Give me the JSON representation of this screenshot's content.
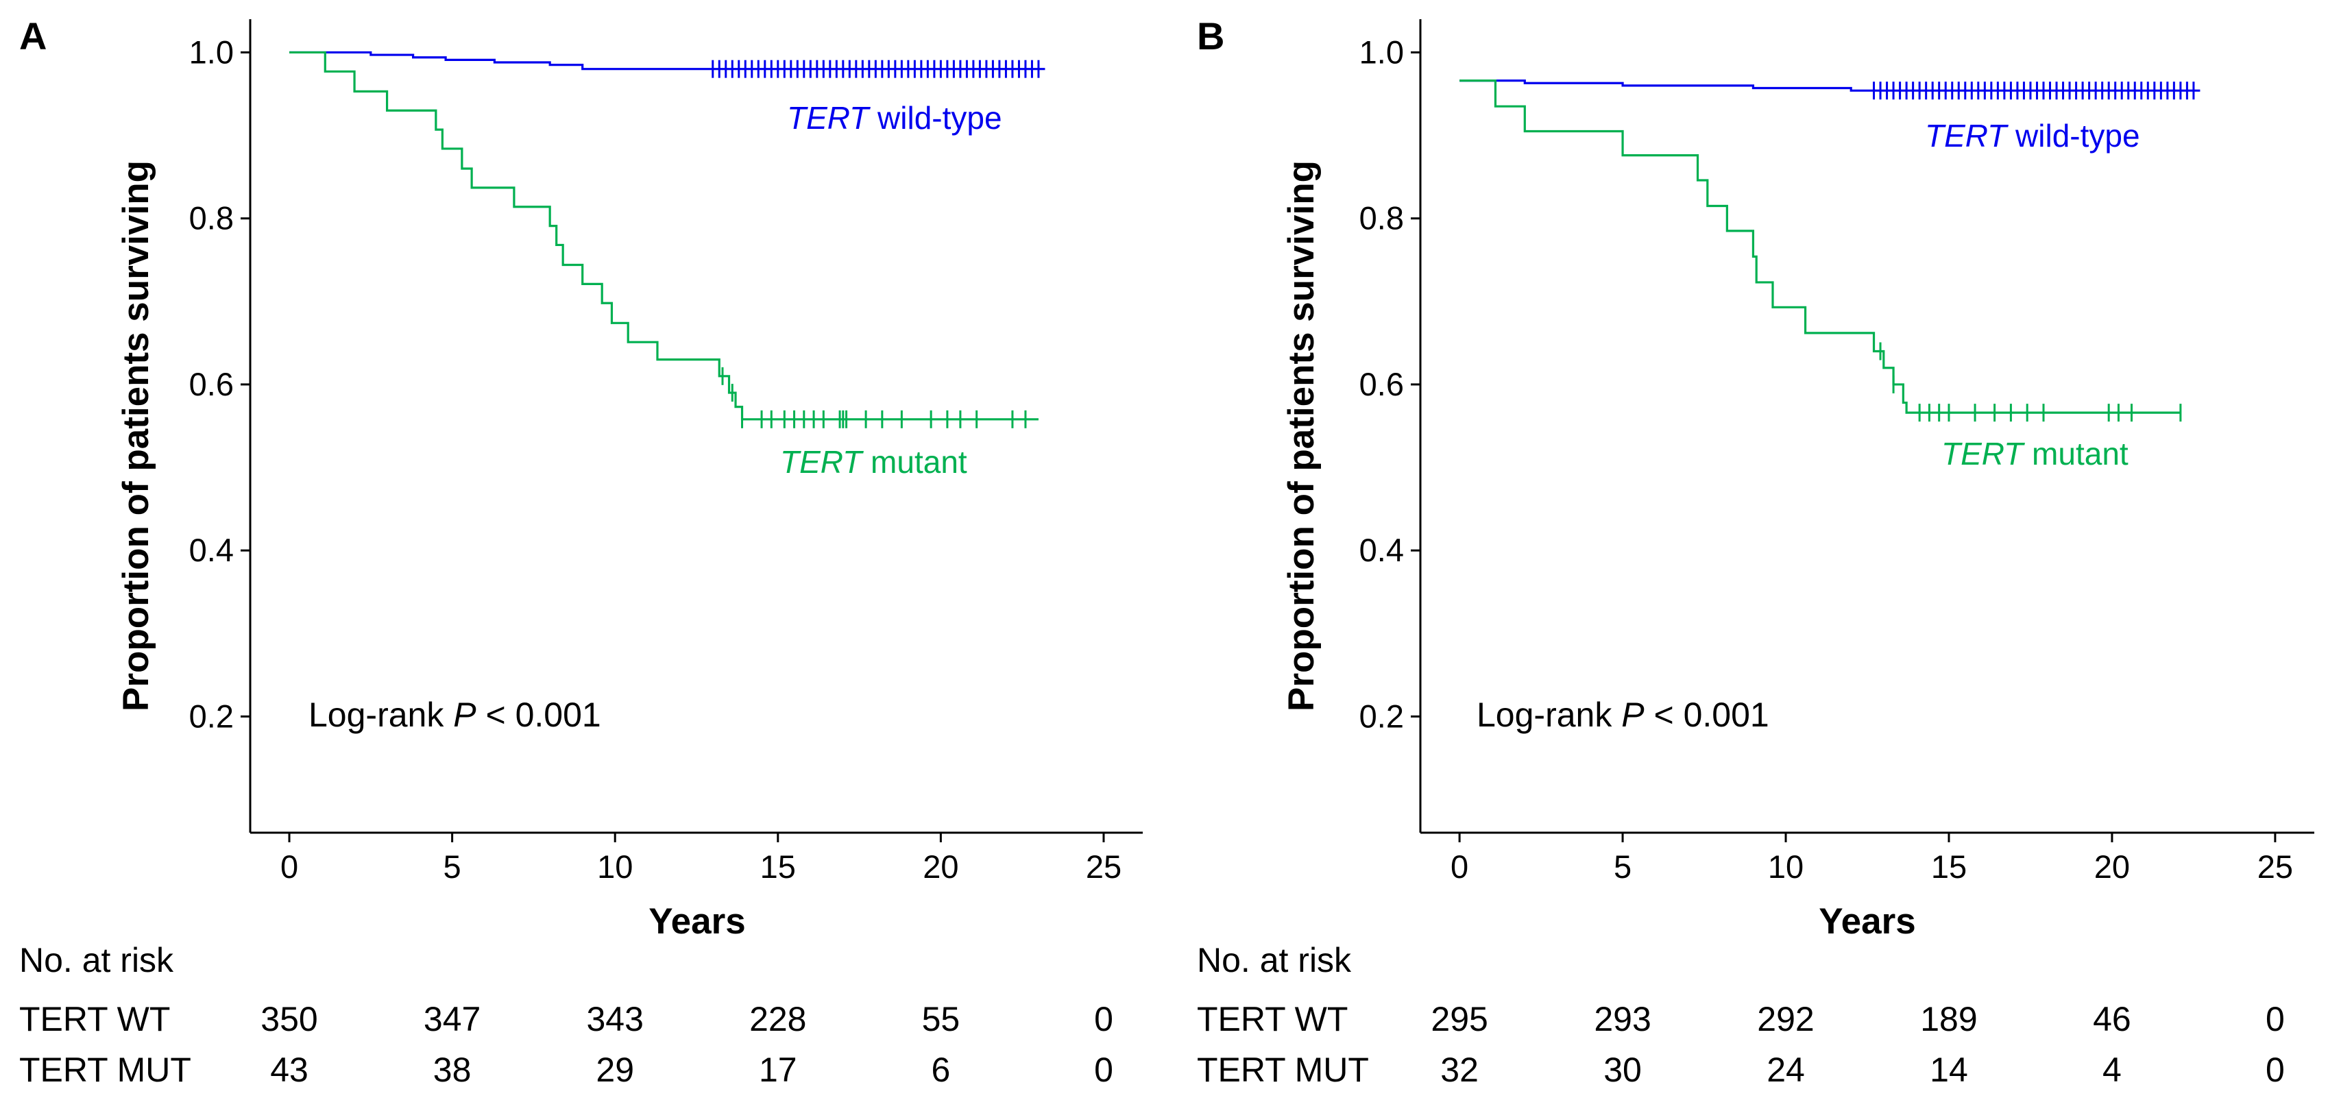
{
  "chart_data": [
    {
      "type": "line",
      "subtype": "kaplan-meier",
      "panel": "A",
      "xlabel": "Years",
      "ylabel": "Proportion of patients surviving",
      "xlim": [
        -1.2,
        26.2
      ],
      "ylim": [
        0.06,
        1.04
      ],
      "xticks": [
        0,
        5,
        10,
        15,
        20,
        25
      ],
      "yticks": [
        0.2,
        0.4,
        0.6,
        0.8,
        1.0
      ],
      "ytick_labels": [
        "0.2",
        "0.4",
        "0.6",
        "0.8",
        "1.0"
      ],
      "annotation": {
        "pre": "Log-rank ",
        "italic": "P",
        "post": " < 0.001"
      },
      "series": [
        {
          "name": "TERT wild-type",
          "label_italic": "TERT",
          "label_rest": " wild-type",
          "color": "#0000ee",
          "steps": [
            [
              0,
              1.0
            ],
            [
              2.5,
              0.997
            ],
            [
              3.8,
              0.994
            ],
            [
              4.8,
              0.991
            ],
            [
              6.3,
              0.988
            ],
            [
              8.0,
              0.985
            ],
            [
              9.0,
              0.98
            ],
            [
              22.8,
              0.98
            ]
          ],
          "end": 23.2,
          "censor_times": [
            13.0,
            13.2,
            13.4,
            13.6,
            13.8,
            14.0,
            14.2,
            14.4,
            14.6,
            14.8,
            15.0,
            15.2,
            15.4,
            15.6,
            15.8,
            16.0,
            16.2,
            16.4,
            16.6,
            16.8,
            17.0,
            17.2,
            17.4,
            17.6,
            17.8,
            18.0,
            18.2,
            18.4,
            18.6,
            18.8,
            19.0,
            19.2,
            19.4,
            19.6,
            19.8,
            20.0,
            20.2,
            20.4,
            20.6,
            20.8,
            21.0,
            21.2,
            21.4,
            21.6,
            21.8,
            22.0,
            22.2,
            22.4,
            22.6,
            22.8,
            23.0
          ]
        },
        {
          "name": "TERT mutant",
          "label_italic": "TERT",
          "label_rest": " mutant",
          "color": "#00b050",
          "steps": [
            [
              0,
              1.0
            ],
            [
              1.1,
              0.977
            ],
            [
              2.0,
              0.953
            ],
            [
              3.0,
              0.93
            ],
            [
              4.5,
              0.907
            ],
            [
              4.7,
              0.884
            ],
            [
              5.3,
              0.86
            ],
            [
              5.6,
              0.837
            ],
            [
              6.9,
              0.814
            ],
            [
              8.0,
              0.791
            ],
            [
              8.2,
              0.768
            ],
            [
              8.4,
              0.744
            ],
            [
              9.0,
              0.721
            ],
            [
              9.6,
              0.698
            ],
            [
              9.9,
              0.674
            ],
            [
              10.4,
              0.651
            ],
            [
              11.3,
              0.63
            ],
            [
              13.2,
              0.61
            ],
            [
              13.5,
              0.59
            ],
            [
              13.7,
              0.573
            ],
            [
              13.9,
              0.558
            ]
          ],
          "end": 23.0,
          "censor_times": [
            13.3,
            13.6,
            13.9,
            14.5,
            14.8,
            15.2,
            15.5,
            15.8,
            16.1,
            16.4,
            16.9,
            17.0,
            17.1,
            17.7,
            18.2,
            18.8,
            19.7,
            20.2,
            20.6,
            21.1,
            22.2,
            22.6
          ]
        }
      ],
      "risk_table": {
        "title": "No. at risk",
        "times": [
          0,
          5,
          10,
          15,
          20,
          25
        ],
        "rows": [
          {
            "label": "TERT WT",
            "values": [
              "350",
              "347",
              "343",
              "228",
              "55",
              "0"
            ]
          },
          {
            "label": "TERT MUT",
            "values": [
              "43",
              "38",
              "29",
              "17",
              "6",
              "0"
            ]
          }
        ]
      }
    },
    {
      "type": "line",
      "subtype": "kaplan-meier",
      "panel": "B",
      "xlabel": "Years",
      "ylabel": "Proportion of patients surviving",
      "xlim": [
        -1.2,
        26.2
      ],
      "ylim": [
        0.06,
        1.04
      ],
      "xticks": [
        0,
        5,
        10,
        15,
        20,
        25
      ],
      "yticks": [
        0.2,
        0.4,
        0.6,
        0.8,
        1.0
      ],
      "ytick_labels": [
        "0.2",
        "0.4",
        "0.6",
        "0.8",
        "1.0"
      ],
      "annotation": {
        "pre": "Log-rank ",
        "italic": "P",
        "post": " < 0.001"
      },
      "series": [
        {
          "name": "TERT wild-type",
          "label_italic": "TERT",
          "label_rest": " wild-type",
          "color": "#0000ee",
          "steps": [
            [
              0,
              0.966
            ],
            [
              2.0,
              0.963
            ],
            [
              5.0,
              0.96
            ],
            [
              9.0,
              0.957
            ],
            [
              12.0,
              0.954
            ],
            [
              22.3,
              0.954
            ]
          ],
          "end": 22.7,
          "censor_times": [
            12.7,
            12.9,
            13.1,
            13.3,
            13.5,
            13.7,
            13.9,
            14.1,
            14.3,
            14.5,
            14.7,
            14.9,
            15.1,
            15.3,
            15.5,
            15.7,
            15.9,
            16.1,
            16.3,
            16.5,
            16.7,
            16.9,
            17.1,
            17.3,
            17.5,
            17.7,
            17.9,
            18.1,
            18.3,
            18.5,
            18.7,
            18.9,
            19.1,
            19.3,
            19.5,
            19.7,
            19.9,
            20.1,
            20.3,
            20.5,
            20.7,
            20.9,
            21.1,
            21.3,
            21.5,
            21.7,
            21.9,
            22.1,
            22.3,
            22.5
          ]
        },
        {
          "name": "TERT mutant",
          "label_italic": "TERT",
          "label_rest": " mutant",
          "color": "#00b050",
          "steps": [
            [
              0,
              0.966
            ],
            [
              1.1,
              0.935
            ],
            [
              2.0,
              0.905
            ],
            [
              5.0,
              0.876
            ],
            [
              7.3,
              0.846
            ],
            [
              7.6,
              0.815
            ],
            [
              8.2,
              0.785
            ],
            [
              9.0,
              0.754
            ],
            [
              9.1,
              0.723
            ],
            [
              9.6,
              0.693
            ],
            [
              10.6,
              0.662
            ],
            [
              12.7,
              0.64
            ],
            [
              13.0,
              0.62
            ],
            [
              13.3,
              0.6
            ],
            [
              13.6,
              0.578
            ],
            [
              13.7,
              0.566
            ]
          ],
          "end": 22.1,
          "censor_times": [
            12.9,
            13.3,
            14.1,
            14.4,
            14.7,
            15.0,
            15.8,
            16.4,
            16.9,
            17.4,
            17.9,
            19.9,
            20.2,
            20.6,
            22.1
          ]
        }
      ],
      "risk_table": {
        "title": "No. at risk",
        "times": [
          0,
          5,
          10,
          15,
          20,
          25
        ],
        "rows": [
          {
            "label": "TERT WT",
            "values": [
              "295",
              "293",
              "292",
              "189",
              "46",
              "0"
            ]
          },
          {
            "label": "TERT MUT",
            "values": [
              "32",
              "30",
              "24",
              "14",
              "4",
              "0"
            ]
          }
        ]
      }
    }
  ]
}
